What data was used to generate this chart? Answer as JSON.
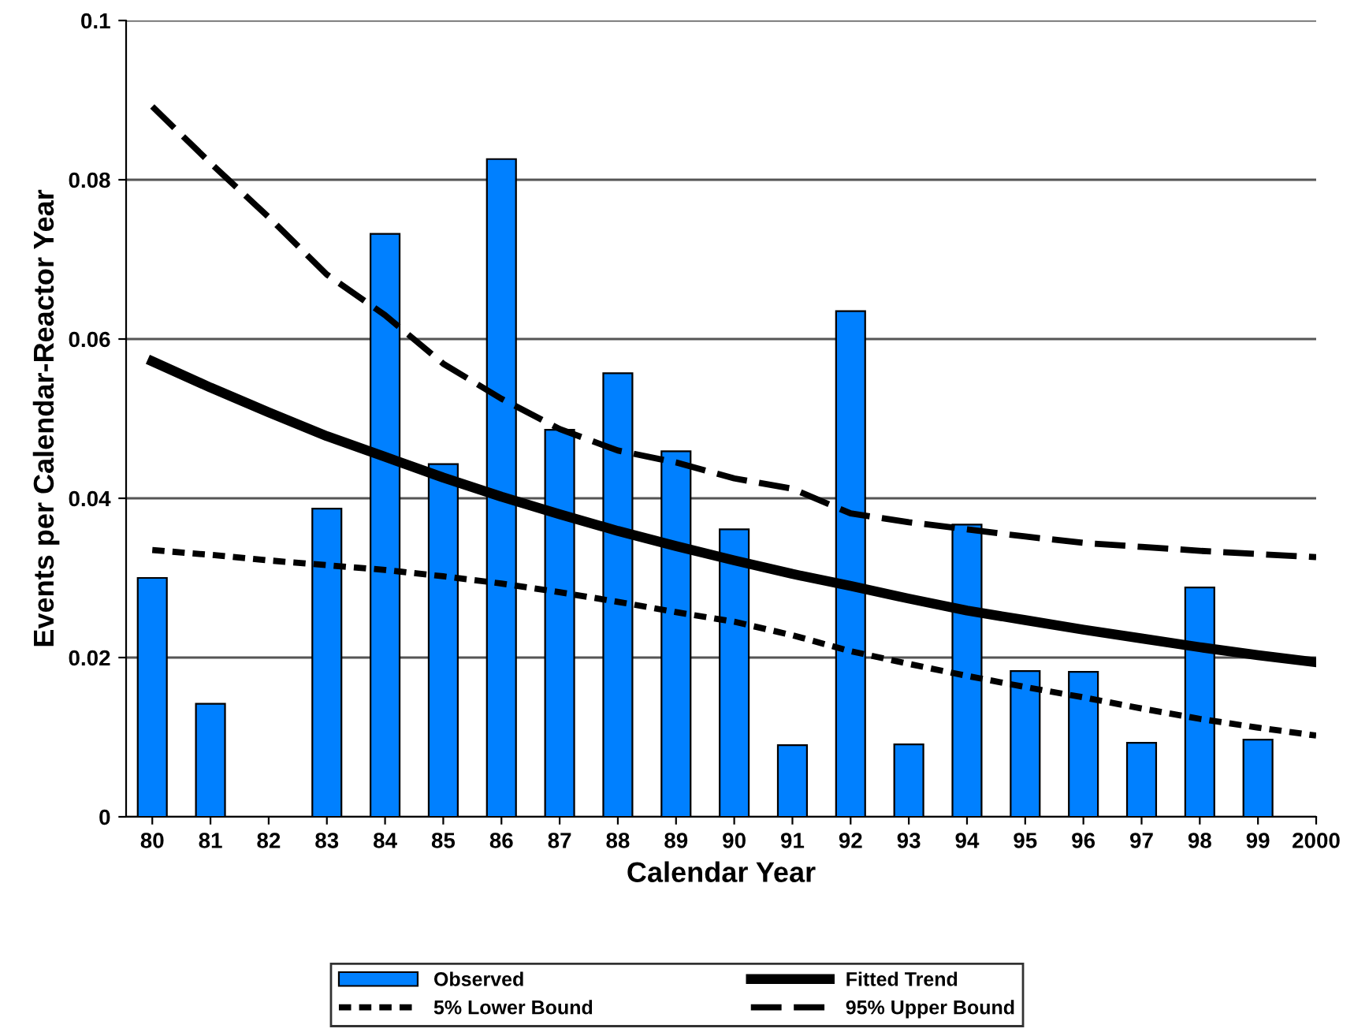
{
  "chart_data": {
    "type": "bar",
    "xlabel": "Calendar Year",
    "ylabel": "Events per Calendar-Reactor Year",
    "categories": [
      "80",
      "81",
      "82",
      "83",
      "84",
      "85",
      "86",
      "87",
      "88",
      "89",
      "90",
      "91",
      "92",
      "93",
      "94",
      "95",
      "96",
      "97",
      "98",
      "99",
      "2000"
    ],
    "series": [
      {
        "name": "Observed",
        "color": "#0080ff",
        "values": [
          0.03,
          0.0142,
          0,
          0.0387,
          0.0732,
          0.0443,
          0.0826,
          0.0486,
          0.0557,
          0.0459,
          0.0361,
          0.009,
          0.0635,
          0.0091,
          0.0367,
          0.0183,
          0.0182,
          0.0093,
          0.0288,
          0.0097,
          null
        ]
      },
      {
        "name": "Fitted Trend",
        "type": "line",
        "color": "#000000",
        "line_style": "solid",
        "values": [
          0.0572,
          0.0539,
          0.0508,
          0.0478,
          0.0452,
          0.0426,
          0.0402,
          0.038,
          0.0359,
          0.034,
          0.0322,
          0.0305,
          0.029,
          0.0274,
          0.0259,
          0.0247,
          0.0235,
          0.0224,
          0.0213,
          0.0203,
          0.0194
        ]
      },
      {
        "name": "5% Lower Bound",
        "type": "line",
        "color": "#000000",
        "line_style": "dotted",
        "values": [
          0.0335,
          0.0329,
          0.0322,
          0.0316,
          0.031,
          0.0302,
          0.0293,
          0.0282,
          0.027,
          0.0257,
          0.0245,
          0.0228,
          0.0208,
          0.0192,
          0.0177,
          0.0163,
          0.015,
          0.0136,
          0.0123,
          0.0112,
          0.0102
        ]
      },
      {
        "name": "95% Upper Bound",
        "type": "line",
        "color": "#000000",
        "line_style": "dashed",
        "values": [
          0.0892,
          0.0821,
          0.0753,
          0.0681,
          0.063,
          0.0569,
          0.0525,
          0.0487,
          0.046,
          0.0445,
          0.0425,
          0.0412,
          0.0381,
          0.037,
          0.0361,
          0.0352,
          0.0344,
          0.0339,
          0.0334,
          0.033,
          0.0326
        ]
      }
    ],
    "ylim": [
      0,
      0.1
    ],
    "yticks": [
      0,
      0.02,
      0.04,
      0.06,
      0.08,
      0.1
    ],
    "grid": "y",
    "legend": "bottom",
    "marker": "none"
  }
}
